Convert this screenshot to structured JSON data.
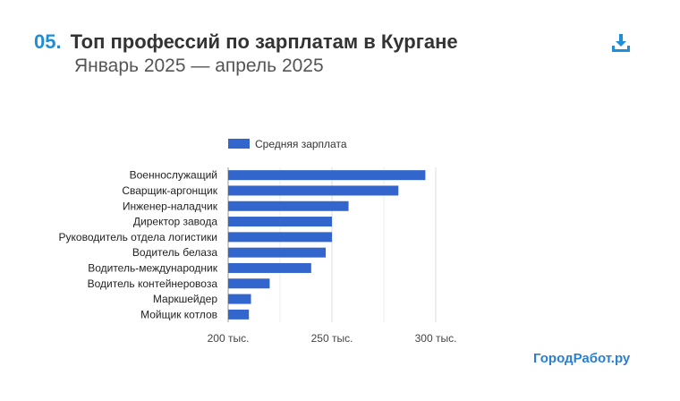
{
  "header": {
    "number": "05.",
    "title": "Топ профессий по зарплатам в Кургане",
    "subtitle": "Январь 2025 — апрель 2025",
    "download_icon": "download-icon"
  },
  "brand": "ГородРабот.ру",
  "colors": {
    "bar": "#3366cc",
    "accent": "#1e8fd6"
  },
  "chart_data": {
    "type": "bar",
    "orientation": "horizontal",
    "categories": [
      "Военнослужащий",
      "Сварщик-аргонщик",
      "Инженер-наладчик",
      "Директор завода",
      "Руководитель отдела логистики",
      "Водитель белаза",
      "Водитель-международник",
      "Водитель контейнеровоза",
      "Маркшейдер",
      "Мойщик котлов"
    ],
    "series": [
      {
        "name": "Средняя зарплата",
        "values": [
          295000,
          282000,
          258000,
          250000,
          250000,
          247000,
          240000,
          220000,
          211000,
          210000
        ]
      }
    ],
    "xlim": [
      200000,
      300000
    ],
    "ticks": [
      {
        "value": 200000,
        "label": "200 тыс."
      },
      {
        "value": 250000,
        "label": "250 тыс."
      },
      {
        "value": 300000,
        "label": "300 тыс."
      }
    ],
    "minor_grid": [
      225000,
      275000
    ],
    "legend": "top"
  }
}
